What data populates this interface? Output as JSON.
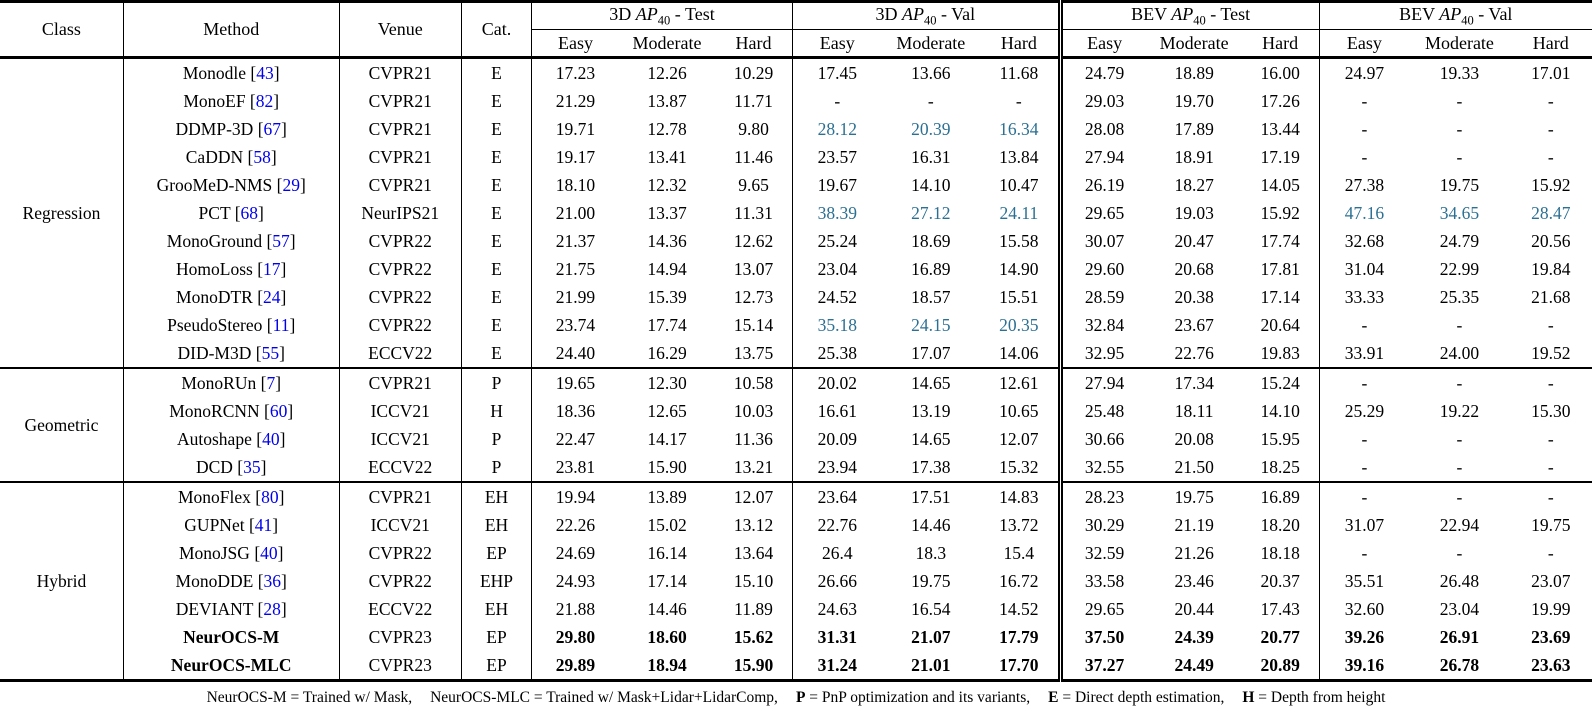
{
  "page": {
    "background": "#ffffff"
  },
  "colors": {
    "citation_link": "#0000ee",
    "second_best_highlight": "#2b7093",
    "text": "#000000",
    "rule": "#000000"
  },
  "table": {
    "left_headers": [
      "Class",
      "Method",
      "Venue",
      "Cat."
    ],
    "groups": [
      {
        "prefix": "3D",
        "metric": "AP",
        "metric_sub": "40",
        "suffix": "- Test"
      },
      {
        "prefix": "3D",
        "metric": "AP",
        "metric_sub": "40",
        "suffix": "- Val"
      },
      {
        "prefix": "BEV",
        "metric": "AP",
        "metric_sub": "40",
        "suffix": "- Test"
      },
      {
        "prefix": "BEV",
        "metric": "AP",
        "metric_sub": "40",
        "suffix": "- Val"
      }
    ],
    "subheaders": [
      "Easy",
      "Moderate",
      "Hard"
    ],
    "classes": [
      {
        "name": "Regression",
        "rows": [
          {
            "method": "Monodle",
            "cite": "43",
            "venue": "CVPR21",
            "cat": "E",
            "values": [
              "17.23",
              "12.26",
              "10.29",
              "17.45",
              "13.66",
              "11.68",
              "24.79",
              "18.89",
              "16.00",
              "24.97",
              "19.33",
              "17.01"
            ]
          },
          {
            "method": "MonoEF",
            "cite": "82",
            "venue": "CVPR21",
            "cat": "E",
            "values": [
              "21.29",
              "13.87",
              "11.71",
              "-",
              "-",
              "-",
              "29.03",
              "19.70",
              "17.26",
              "-",
              "-",
              "-"
            ]
          },
          {
            "method": "DDMP-3D",
            "cite": "67",
            "venue": "CVPR21",
            "cat": "E",
            "values": [
              "19.71",
              "12.78",
              "9.80",
              "28.12",
              "20.39",
              "16.34",
              "28.08",
              "17.89",
              "13.44",
              "-",
              "-",
              "-"
            ],
            "teal": [
              3,
              4,
              5
            ]
          },
          {
            "method": "CaDDN",
            "cite": "58",
            "venue": "CVPR21",
            "cat": "E",
            "values": [
              "19.17",
              "13.41",
              "11.46",
              "23.57",
              "16.31",
              "13.84",
              "27.94",
              "18.91",
              "17.19",
              "-",
              "-",
              "-"
            ]
          },
          {
            "method": "GrooMeD-NMS",
            "cite": "29",
            "venue": "CVPR21",
            "cat": "E",
            "values": [
              "18.10",
              "12.32",
              "9.65",
              "19.67",
              "14.10",
              "10.47",
              "26.19",
              "18.27",
              "14.05",
              "27.38",
              "19.75",
              "15.92"
            ]
          },
          {
            "method": "PCT",
            "cite": "68",
            "venue": "NeurIPS21",
            "cat": "E",
            "values": [
              "21.00",
              "13.37",
              "11.31",
              "38.39",
              "27.12",
              "24.11",
              "29.65",
              "19.03",
              "15.92",
              "47.16",
              "34.65",
              "28.47"
            ],
            "teal": [
              3,
              4,
              5,
              9,
              10,
              11
            ]
          },
          {
            "method": "MonoGround",
            "cite": "57",
            "venue": "CVPR22",
            "cat": "E",
            "values": [
              "21.37",
              "14.36",
              "12.62",
              "25.24",
              "18.69",
              "15.58",
              "30.07",
              "20.47",
              "17.74",
              "32.68",
              "24.79",
              "20.56"
            ]
          },
          {
            "method": "HomoLoss",
            "cite": "17",
            "venue": "CVPR22",
            "cat": "E",
            "values": [
              "21.75",
              "14.94",
              "13.07",
              "23.04",
              "16.89",
              "14.90",
              "29.60",
              "20.68",
              "17.81",
              "31.04",
              "22.99",
              "19.84"
            ]
          },
          {
            "method": "MonoDTR",
            "cite": "24",
            "venue": "CVPR22",
            "cat": "E",
            "values": [
              "21.99",
              "15.39",
              "12.73",
              "24.52",
              "18.57",
              "15.51",
              "28.59",
              "20.38",
              "17.14",
              "33.33",
              "25.35",
              "21.68"
            ]
          },
          {
            "method": "PseudoStereo",
            "cite": "11",
            "venue": "CVPR22",
            "cat": "E",
            "values": [
              "23.74",
              "17.74",
              "15.14",
              "35.18",
              "24.15",
              "20.35",
              "32.84",
              "23.67",
              "20.64",
              "-",
              "-",
              "-"
            ],
            "teal": [
              3,
              4,
              5
            ]
          },
          {
            "method": "DID-M3D",
            "cite": "55",
            "venue": "ECCV22",
            "cat": "E",
            "values": [
              "24.40",
              "16.29",
              "13.75",
              "25.38",
              "17.07",
              "14.06",
              "32.95",
              "22.76",
              "19.83",
              "33.91",
              "24.00",
              "19.52"
            ]
          }
        ]
      },
      {
        "name": "Geometric",
        "rows": [
          {
            "method": "MonoRUn",
            "cite": "7",
            "venue": "CVPR21",
            "cat": "P",
            "values": [
              "19.65",
              "12.30",
              "10.58",
              "20.02",
              "14.65",
              "12.61",
              "27.94",
              "17.34",
              "15.24",
              "-",
              "-",
              "-"
            ]
          },
          {
            "method": "MonoRCNN",
            "cite": "60",
            "venue": "ICCV21",
            "cat": "H",
            "values": [
              "18.36",
              "12.65",
              "10.03",
              "16.61",
              "13.19",
              "10.65",
              "25.48",
              "18.11",
              "14.10",
              "25.29",
              "19.22",
              "15.30"
            ]
          },
          {
            "method": "Autoshape",
            "cite": "40",
            "venue": "ICCV21",
            "cat": "P",
            "values": [
              "22.47",
              "14.17",
              "11.36",
              "20.09",
              "14.65",
              "12.07",
              "30.66",
              "20.08",
              "15.95",
              "-",
              "-",
              "-"
            ]
          },
          {
            "method": "DCD",
            "cite": "35",
            "venue": "ECCV22",
            "cat": "P",
            "values": [
              "23.81",
              "15.90",
              "13.21",
              "23.94",
              "17.38",
              "15.32",
              "32.55",
              "21.50",
              "18.25",
              "-",
              "-",
              "-"
            ]
          }
        ]
      },
      {
        "name": "Hybrid",
        "rows": [
          {
            "method": "MonoFlex",
            "cite": "80",
            "venue": "CVPR21",
            "cat": "EH",
            "values": [
              "19.94",
              "13.89",
              "12.07",
              "23.64",
              "17.51",
              "14.83",
              "28.23",
              "19.75",
              "16.89",
              "-",
              "-",
              "-"
            ]
          },
          {
            "method": "GUPNet",
            "cite": "41",
            "venue": "ICCV21",
            "cat": "EH",
            "values": [
              "22.26",
              "15.02",
              "13.12",
              "22.76",
              "14.46",
              "13.72",
              "30.29",
              "21.19",
              "18.20",
              "31.07",
              "22.94",
              "19.75"
            ]
          },
          {
            "method": "MonoJSG",
            "cite": "40",
            "venue": "CVPR22",
            "cat": "EP",
            "values": [
              "24.69",
              "16.14",
              "13.64",
              "26.4",
              "18.3",
              "15.4",
              "32.59",
              "21.26",
              "18.18",
              "-",
              "-",
              "-"
            ]
          },
          {
            "method": "MonoDDE",
            "cite": "36",
            "venue": "CVPR22",
            "cat": "EHP",
            "values": [
              "24.93",
              "17.14",
              "15.10",
              "26.66",
              "19.75",
              "16.72",
              "33.58",
              "23.46",
              "20.37",
              "35.51",
              "26.48",
              "23.07"
            ]
          },
          {
            "method": "DEVIANT",
            "cite": "28",
            "venue": "ECCV22",
            "cat": "EH",
            "values": [
              "21.88",
              "14.46",
              "11.89",
              "24.63",
              "16.54",
              "14.52",
              "29.65",
              "20.44",
              "17.43",
              "32.60",
              "23.04",
              "19.99"
            ]
          },
          {
            "method": "NeurOCS-M",
            "venue": "CVPR23",
            "cat": "EP",
            "bold": true,
            "values": [
              "29.80",
              "18.60",
              "15.62",
              "31.31",
              "21.07",
              "17.79",
              "37.50",
              "24.39",
              "20.77",
              "39.26",
              "26.91",
              "23.69"
            ]
          },
          {
            "method": "NeurOCS-MLC",
            "venue": "CVPR23",
            "cat": "EP",
            "bold": true,
            "values": [
              "29.89",
              "18.94",
              "15.90",
              "31.24",
              "21.01",
              "17.70",
              "37.27",
              "24.49",
              "20.89",
              "39.16",
              "26.78",
              "23.63"
            ]
          }
        ]
      }
    ]
  },
  "footnote": {
    "segments": [
      {
        "key": "",
        "text": "NeurOCS-M = Trained w/ Mask,"
      },
      {
        "key": "",
        "text": "NeurOCS-MLC = Trained w/ Mask+Lidar+LidarComp,"
      },
      {
        "key": "P",
        "text": " = PnP optimization and its variants,"
      },
      {
        "key": "E",
        "text": " = Direct depth estimation,"
      },
      {
        "key": "H",
        "text": " = Depth from height"
      }
    ]
  }
}
